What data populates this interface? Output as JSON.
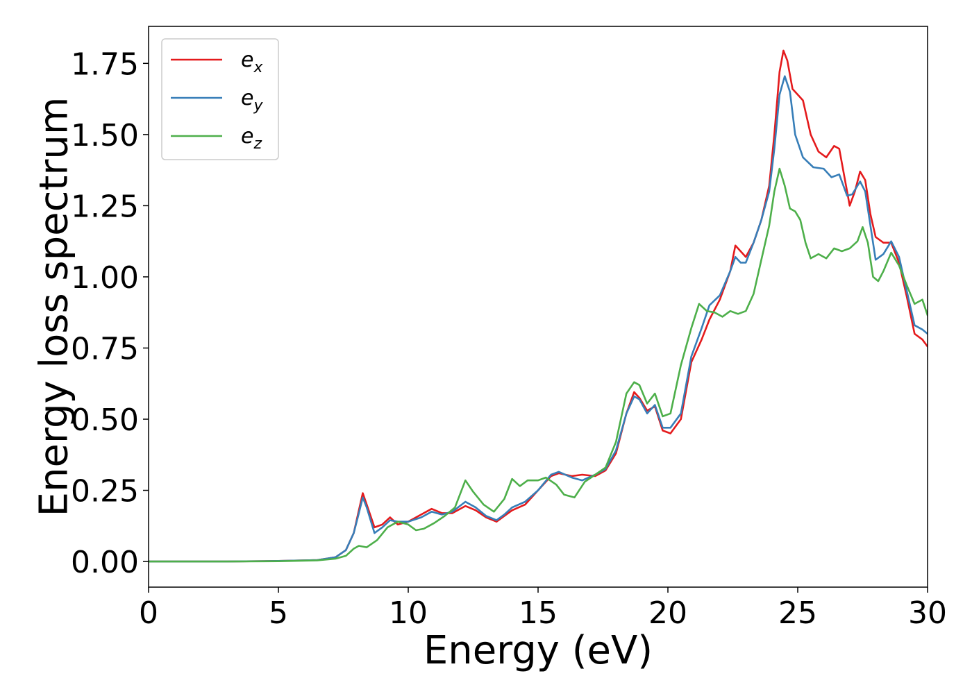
{
  "chart_data": {
    "type": "line",
    "title": "",
    "xlabel": "Energy (eV)",
    "ylabel": "Energy loss spectrum",
    "xlim": [
      0,
      30
    ],
    "ylim": [
      -0.09,
      1.88
    ],
    "xticks": [
      0,
      5,
      10,
      15,
      20,
      25,
      30
    ],
    "xtick_labels": [
      "0",
      "5",
      "10",
      "15",
      "20",
      "25",
      "30"
    ],
    "yticks": [
      0,
      0.25,
      0.5,
      0.75,
      1.0,
      1.25,
      1.5,
      1.75
    ],
    "ytick_labels": [
      "0.00",
      "0.25",
      "0.50",
      "0.75",
      "1.00",
      "1.25",
      "1.50",
      "1.75"
    ],
    "grid": false,
    "legend_position": "top-left",
    "series": [
      {
        "name": "e_x",
        "label_base": "e",
        "label_sub": "x",
        "color": "#e41a1c",
        "points": [
          [
            0,
            0
          ],
          [
            3,
            0
          ],
          [
            5,
            0.002
          ],
          [
            6.5,
            0.005
          ],
          [
            7.2,
            0.015
          ],
          [
            7.6,
            0.04
          ],
          [
            7.9,
            0.1
          ],
          [
            8.1,
            0.18
          ],
          [
            8.25,
            0.24
          ],
          [
            8.4,
            0.2
          ],
          [
            8.7,
            0.12
          ],
          [
            9.0,
            0.13
          ],
          [
            9.3,
            0.155
          ],
          [
            9.6,
            0.13
          ],
          [
            10.0,
            0.14
          ],
          [
            10.5,
            0.165
          ],
          [
            10.9,
            0.185
          ],
          [
            11.3,
            0.17
          ],
          [
            11.7,
            0.17
          ],
          [
            12.2,
            0.195
          ],
          [
            12.6,
            0.18
          ],
          [
            13.0,
            0.155
          ],
          [
            13.4,
            0.14
          ],
          [
            13.7,
            0.16
          ],
          [
            14.0,
            0.18
          ],
          [
            14.5,
            0.2
          ],
          [
            15.0,
            0.25
          ],
          [
            15.5,
            0.3
          ],
          [
            15.8,
            0.31
          ],
          [
            16.3,
            0.3
          ],
          [
            16.7,
            0.305
          ],
          [
            17.2,
            0.3
          ],
          [
            17.6,
            0.32
          ],
          [
            18.0,
            0.38
          ],
          [
            18.4,
            0.52
          ],
          [
            18.7,
            0.595
          ],
          [
            18.9,
            0.575
          ],
          [
            19.2,
            0.53
          ],
          [
            19.5,
            0.545
          ],
          [
            19.8,
            0.46
          ],
          [
            20.1,
            0.45
          ],
          [
            20.5,
            0.5
          ],
          [
            20.9,
            0.7
          ],
          [
            21.3,
            0.78
          ],
          [
            21.6,
            0.85
          ],
          [
            22.0,
            0.92
          ],
          [
            22.4,
            1.02
          ],
          [
            22.6,
            1.11
          ],
          [
            22.8,
            1.09
          ],
          [
            23.0,
            1.07
          ],
          [
            23.3,
            1.12
          ],
          [
            23.6,
            1.2
          ],
          [
            23.9,
            1.32
          ],
          [
            24.1,
            1.5
          ],
          [
            24.3,
            1.72
          ],
          [
            24.45,
            1.795
          ],
          [
            24.6,
            1.76
          ],
          [
            24.8,
            1.66
          ],
          [
            25.0,
            1.64
          ],
          [
            25.2,
            1.62
          ],
          [
            25.5,
            1.5
          ],
          [
            25.8,
            1.44
          ],
          [
            26.1,
            1.42
          ],
          [
            26.4,
            1.46
          ],
          [
            26.6,
            1.45
          ],
          [
            26.9,
            1.3
          ],
          [
            27.0,
            1.25
          ],
          [
            27.2,
            1.3
          ],
          [
            27.4,
            1.37
          ],
          [
            27.6,
            1.34
          ],
          [
            27.8,
            1.22
          ],
          [
            28.0,
            1.14
          ],
          [
            28.3,
            1.12
          ],
          [
            28.6,
            1.12
          ],
          [
            28.9,
            1.05
          ],
          [
            29.2,
            0.93
          ],
          [
            29.5,
            0.8
          ],
          [
            29.8,
            0.78
          ],
          [
            30.0,
            0.755
          ]
        ]
      },
      {
        "name": "e_y",
        "label_base": "e",
        "label_sub": "y",
        "color": "#377eb8",
        "points": [
          [
            0,
            0
          ],
          [
            3,
            0
          ],
          [
            5,
            0.002
          ],
          [
            6.5,
            0.005
          ],
          [
            7.2,
            0.015
          ],
          [
            7.6,
            0.04
          ],
          [
            7.9,
            0.1
          ],
          [
            8.1,
            0.17
          ],
          [
            8.25,
            0.225
          ],
          [
            8.4,
            0.19
          ],
          [
            8.7,
            0.1
          ],
          [
            9.0,
            0.12
          ],
          [
            9.3,
            0.145
          ],
          [
            9.6,
            0.14
          ],
          [
            10.0,
            0.14
          ],
          [
            10.5,
            0.155
          ],
          [
            10.9,
            0.175
          ],
          [
            11.3,
            0.165
          ],
          [
            11.7,
            0.175
          ],
          [
            12.2,
            0.21
          ],
          [
            12.6,
            0.19
          ],
          [
            13.0,
            0.16
          ],
          [
            13.4,
            0.145
          ],
          [
            13.7,
            0.165
          ],
          [
            14.0,
            0.19
          ],
          [
            14.5,
            0.21
          ],
          [
            15.0,
            0.25
          ],
          [
            15.5,
            0.305
          ],
          [
            15.8,
            0.315
          ],
          [
            16.3,
            0.295
          ],
          [
            16.7,
            0.285
          ],
          [
            17.2,
            0.305
          ],
          [
            17.6,
            0.325
          ],
          [
            18.0,
            0.39
          ],
          [
            18.4,
            0.52
          ],
          [
            18.7,
            0.58
          ],
          [
            18.9,
            0.57
          ],
          [
            19.2,
            0.52
          ],
          [
            19.5,
            0.55
          ],
          [
            19.8,
            0.47
          ],
          [
            20.1,
            0.47
          ],
          [
            20.5,
            0.52
          ],
          [
            20.9,
            0.72
          ],
          [
            21.3,
            0.82
          ],
          [
            21.6,
            0.9
          ],
          [
            22.0,
            0.935
          ],
          [
            22.4,
            1.02
          ],
          [
            22.6,
            1.07
          ],
          [
            22.8,
            1.05
          ],
          [
            23.0,
            1.05
          ],
          [
            23.3,
            1.12
          ],
          [
            23.6,
            1.2
          ],
          [
            23.9,
            1.3
          ],
          [
            24.1,
            1.45
          ],
          [
            24.3,
            1.64
          ],
          [
            24.5,
            1.705
          ],
          [
            24.7,
            1.65
          ],
          [
            24.9,
            1.5
          ],
          [
            25.2,
            1.42
          ],
          [
            25.6,
            1.385
          ],
          [
            26.0,
            1.38
          ],
          [
            26.3,
            1.35
          ],
          [
            26.6,
            1.36
          ],
          [
            26.9,
            1.285
          ],
          [
            27.1,
            1.29
          ],
          [
            27.4,
            1.335
          ],
          [
            27.6,
            1.3
          ],
          [
            27.8,
            1.18
          ],
          [
            28.0,
            1.06
          ],
          [
            28.3,
            1.08
          ],
          [
            28.6,
            1.125
          ],
          [
            28.9,
            1.07
          ],
          [
            29.2,
            0.95
          ],
          [
            29.5,
            0.83
          ],
          [
            29.8,
            0.815
          ],
          [
            30.0,
            0.8
          ]
        ]
      },
      {
        "name": "e_z",
        "label_base": "e",
        "label_sub": "z",
        "color": "#4daf4a",
        "points": [
          [
            0,
            0
          ],
          [
            3,
            0
          ],
          [
            5,
            0.001
          ],
          [
            6.5,
            0.004
          ],
          [
            7.2,
            0.01
          ],
          [
            7.6,
            0.02
          ],
          [
            7.9,
            0.045
          ],
          [
            8.1,
            0.055
          ],
          [
            8.4,
            0.05
          ],
          [
            8.8,
            0.075
          ],
          [
            9.2,
            0.12
          ],
          [
            9.6,
            0.14
          ],
          [
            10.0,
            0.13
          ],
          [
            10.3,
            0.11
          ],
          [
            10.6,
            0.115
          ],
          [
            11.0,
            0.135
          ],
          [
            11.4,
            0.16
          ],
          [
            11.8,
            0.19
          ],
          [
            12.2,
            0.285
          ],
          [
            12.5,
            0.245
          ],
          [
            12.9,
            0.2
          ],
          [
            13.3,
            0.175
          ],
          [
            13.7,
            0.22
          ],
          [
            14.0,
            0.29
          ],
          [
            14.3,
            0.265
          ],
          [
            14.6,
            0.285
          ],
          [
            15.0,
            0.285
          ],
          [
            15.3,
            0.295
          ],
          [
            15.7,
            0.27
          ],
          [
            16.0,
            0.235
          ],
          [
            16.4,
            0.225
          ],
          [
            16.8,
            0.28
          ],
          [
            17.2,
            0.305
          ],
          [
            17.6,
            0.33
          ],
          [
            18.0,
            0.42
          ],
          [
            18.4,
            0.59
          ],
          [
            18.7,
            0.63
          ],
          [
            18.9,
            0.62
          ],
          [
            19.2,
            0.555
          ],
          [
            19.5,
            0.59
          ],
          [
            19.8,
            0.51
          ],
          [
            20.1,
            0.52
          ],
          [
            20.5,
            0.69
          ],
          [
            20.9,
            0.82
          ],
          [
            21.2,
            0.905
          ],
          [
            21.5,
            0.88
          ],
          [
            21.8,
            0.875
          ],
          [
            22.1,
            0.86
          ],
          [
            22.4,
            0.88
          ],
          [
            22.7,
            0.87
          ],
          [
            23.0,
            0.88
          ],
          [
            23.3,
            0.94
          ],
          [
            23.6,
            1.06
          ],
          [
            23.9,
            1.18
          ],
          [
            24.1,
            1.3
          ],
          [
            24.3,
            1.38
          ],
          [
            24.5,
            1.32
          ],
          [
            24.7,
            1.24
          ],
          [
            24.9,
            1.23
          ],
          [
            25.1,
            1.2
          ],
          [
            25.3,
            1.12
          ],
          [
            25.5,
            1.065
          ],
          [
            25.8,
            1.08
          ],
          [
            26.1,
            1.065
          ],
          [
            26.4,
            1.1
          ],
          [
            26.7,
            1.09
          ],
          [
            27.0,
            1.1
          ],
          [
            27.3,
            1.125
          ],
          [
            27.5,
            1.175
          ],
          [
            27.7,
            1.12
          ],
          [
            27.9,
            1.0
          ],
          [
            28.1,
            0.985
          ],
          [
            28.3,
            1.02
          ],
          [
            28.6,
            1.085
          ],
          [
            28.9,
            1.04
          ],
          [
            29.2,
            0.97
          ],
          [
            29.5,
            0.905
          ],
          [
            29.8,
            0.92
          ],
          [
            30.0,
            0.865
          ]
        ]
      }
    ]
  }
}
